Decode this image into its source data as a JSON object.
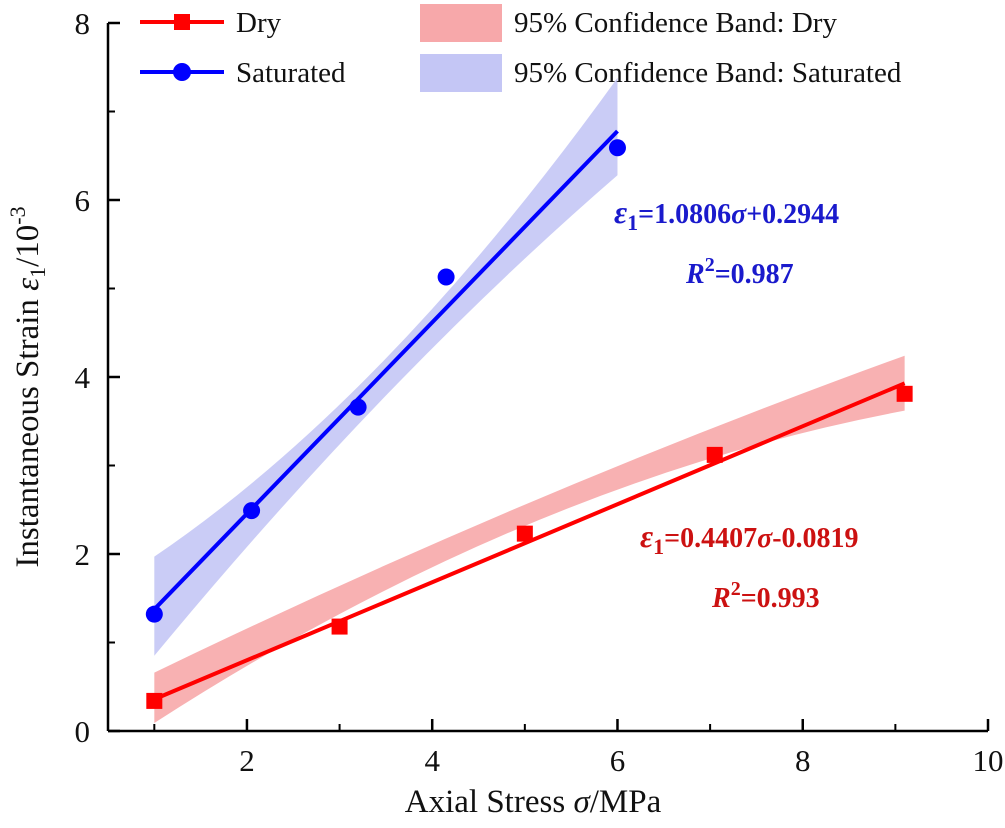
{
  "chart_data": {
    "type": "scatter",
    "xlabel": {
      "prefix": "Axial Stress ",
      "symbol": "σ",
      "suffix": "/MPa"
    },
    "ylabel": {
      "prefix": "Instantaneous Strain ",
      "symbol": "ε",
      "sub": "1",
      "suffix": "/10",
      "sup": "-3"
    },
    "xlim": [
      0.5,
      10
    ],
    "ylim": [
      0,
      8
    ],
    "x_ticks": [
      2,
      4,
      6,
      8,
      10
    ],
    "y_ticks": [
      0,
      2,
      4,
      6,
      8
    ],
    "grid": false,
    "legend_position": "top",
    "legend": [
      {
        "label": "Dry",
        "type": "line-square",
        "color": "#ff0000"
      },
      {
        "label": "Saturated",
        "type": "line-circle",
        "color": "#0000ff"
      },
      {
        "label": "95% Confidence Band: Dry",
        "type": "band",
        "color": "#f7a8aa"
      },
      {
        "label": "95% Confidence Band: Saturated",
        "type": "band",
        "color": "#c4c6f5"
      }
    ],
    "series": [
      {
        "name": "Dry",
        "marker": "square",
        "color": "#ff0000",
        "band_color": "#f7a8aa",
        "x": [
          1.0,
          3.0,
          5.0,
          7.05,
          9.1
        ],
        "y": [
          0.34,
          1.18,
          2.23,
          3.12,
          3.81
        ],
        "fit": {
          "slope": 0.4407,
          "intercept": -0.0819,
          "x_range": [
            1.0,
            9.1
          ]
        },
        "band_at_ends": [
          [
            0.09,
            0.66
          ],
          [
            3.62,
            4.24
          ]
        ],
        "band_at_center": [
          2.34,
          2.58
        ],
        "equation": {
          "lhs": "ε",
          "sub": "1",
          "text": "=0.4407",
          "sym": "σ",
          "rest": "-0.0819",
          "color": "#cc1111"
        },
        "r2": {
          "label": "R",
          "sup": "2",
          "value": "=0.993",
          "color": "#cc1111"
        }
      },
      {
        "name": "Saturated",
        "marker": "circle",
        "color": "#0000ff",
        "band_color": "#c4c6f5",
        "x": [
          1.0,
          2.05,
          3.2,
          4.15,
          6.0
        ],
        "y": [
          1.32,
          2.49,
          3.66,
          5.13,
          6.59
        ],
        "fit": {
          "slope": 1.0806,
          "intercept": 0.2944,
          "x_range": [
            1.0,
            6.0
          ]
        },
        "band_at_ends": [
          [
            0.85,
            1.97
          ],
          [
            6.28,
            7.38
          ]
        ],
        "band_at_center": [
          3.79,
          4.21
        ],
        "equation": {
          "lhs": "ε",
          "sub": "1",
          "text": "=1.0806",
          "sym": "σ",
          "rest": "+0.2944",
          "color": "#1a1acc"
        },
        "r2": {
          "label": "R",
          "sup": "2",
          "value": "=0.987",
          "color": "#1a1acc"
        }
      }
    ]
  }
}
